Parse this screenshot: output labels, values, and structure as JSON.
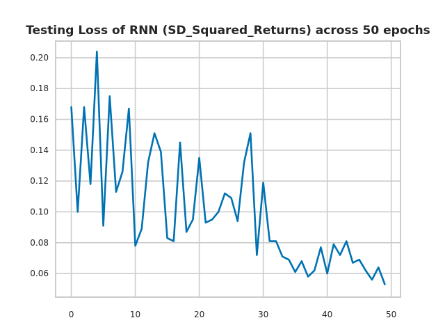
{
  "chart_data": {
    "type": "line",
    "title": "Testing Loss of RNN (SD_Squared_Returns) across 50 epochs",
    "xlabel": "",
    "ylabel": "",
    "xlim": [
      -2.45,
      51.45
    ],
    "ylim": [
      0.0447,
      0.2108
    ],
    "x_ticks": [
      0,
      10,
      20,
      30,
      40,
      50
    ],
    "y_ticks": [
      0.06,
      0.08,
      0.1,
      0.12,
      0.14,
      0.16,
      0.18,
      0.2
    ],
    "y_tick_labels": [
      "0.06",
      "0.08",
      "0.10",
      "0.12",
      "0.14",
      "0.16",
      "0.18",
      "0.20"
    ],
    "grid": true,
    "series": [
      {
        "color": "#0072b2",
        "x": [
          0,
          1,
          2,
          3,
          4,
          5,
          6,
          7,
          8,
          9,
          10,
          11,
          12,
          13,
          14,
          15,
          16,
          17,
          18,
          19,
          20,
          21,
          22,
          23,
          24,
          25,
          26,
          27,
          28,
          29,
          30,
          31,
          32,
          33,
          34,
          35,
          36,
          37,
          38,
          39,
          40,
          41,
          42,
          43,
          44,
          45,
          46,
          47,
          48,
          49
        ],
        "values": [
          0.168,
          0.1,
          0.168,
          0.118,
          0.204,
          0.091,
          0.175,
          0.113,
          0.126,
          0.167,
          0.078,
          0.089,
          0.132,
          0.151,
          0.139,
          0.083,
          0.081,
          0.145,
          0.087,
          0.095,
          0.135,
          0.093,
          0.095,
          0.1,
          0.112,
          0.109,
          0.094,
          0.132,
          0.151,
          0.072,
          0.119,
          0.081,
          0.081,
          0.071,
          0.069,
          0.061,
          0.068,
          0.058,
          0.062,
          0.077,
          0.06,
          0.079,
          0.072,
          0.081,
          0.067,
          0.069,
          0.062,
          0.056,
          0.064,
          0.053
        ]
      }
    ]
  }
}
